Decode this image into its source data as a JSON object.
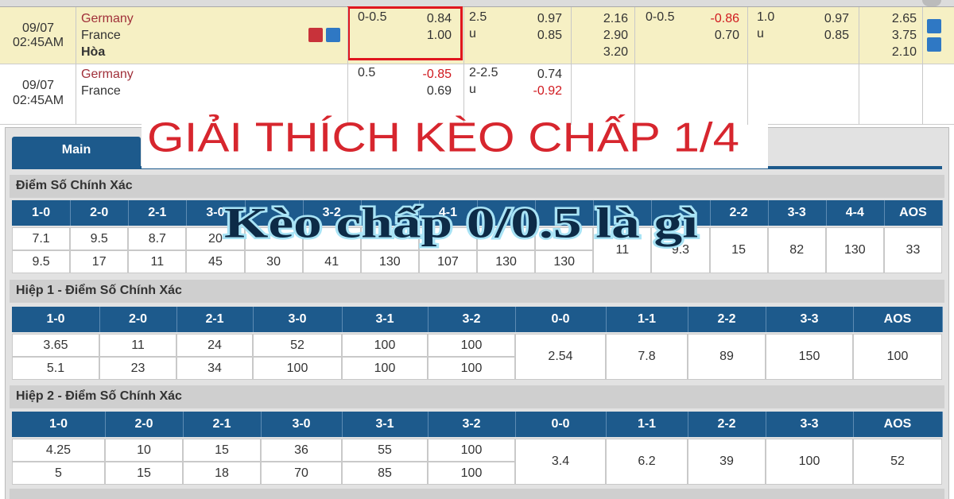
{
  "matches": [
    {
      "date": "09/07",
      "time": "02:45AM",
      "home": "Germany",
      "away": "France",
      "draw": "Hòa",
      "ft_handicap": {
        "line": "0-0.5",
        "home": "0.84",
        "away": "1.00"
      },
      "ft_ou": {
        "line": "2.5",
        "side": "u",
        "over": "0.97",
        "under": "0.85"
      },
      "ft_1x2": [
        "2.16",
        "2.90",
        "3.20"
      ],
      "h1_handicap": {
        "line": "0-0.5",
        "home": "-0.86",
        "away": "0.70"
      },
      "h1_ou": {
        "line": "1.0",
        "side": "u",
        "over": "0.97",
        "under": "0.85"
      },
      "h1_1x2": [
        "2.65",
        "3.75",
        "2.10"
      ]
    },
    {
      "date": "09/07",
      "time": "02:45AM",
      "home": "Germany",
      "away": "France",
      "ft_handicap": {
        "line": "0.5",
        "home": "-0.85",
        "away": "0.69"
      },
      "ft_ou": {
        "line": "2-2.5",
        "side": "u",
        "over": "0.74",
        "under": "-0.92"
      }
    }
  ],
  "tab": "Main",
  "banner": "GIẢI THÍCH KÈO CHẤP 1/4",
  "overlay": "Kèo chấp 0/0.5 là gì",
  "sections": [
    {
      "title": "Điểm Số Chính Xác",
      "columns": [
        "1-0",
        "2-0",
        "2-1",
        "3-0",
        null,
        "3-2",
        null,
        "4-1",
        null,
        null,
        null,
        null,
        "2-2",
        "3-3",
        "4-4",
        "AOS"
      ],
      "rows": [
        [
          "7.1",
          "9.5",
          "8.7",
          "20",
          null,
          null,
          null,
          null,
          null,
          null
        ],
        [
          "9.5",
          "17",
          "11",
          "45",
          "30",
          "41",
          "130",
          "107",
          "130",
          "130"
        ]
      ],
      "merged": [
        "11",
        "9.3",
        "15",
        "82",
        "130",
        "33"
      ]
    },
    {
      "title": "Hiệp 1 - Điểm Số Chính Xác",
      "columns": [
        "1-0",
        "2-0",
        "2-1",
        "3-0",
        "3-1",
        "3-2",
        "0-0",
        "1-1",
        "2-2",
        "3-3",
        "AOS"
      ],
      "rows": [
        [
          "3.65",
          "11",
          "24",
          "52",
          "100",
          "100"
        ],
        [
          "5.1",
          "23",
          "34",
          "100",
          "100",
          "100"
        ]
      ],
      "merged": [
        "2.54",
        "7.8",
        "89",
        "150",
        "100"
      ]
    },
    {
      "title": "Hiệp 2 - Điểm Số Chính Xác",
      "columns": [
        "1-0",
        "2-0",
        "2-1",
        "3-0",
        "3-1",
        "3-2",
        "0-0",
        "1-1",
        "2-2",
        "3-3",
        "AOS"
      ],
      "rows": [
        [
          "4.25",
          "10",
          "15",
          "36",
          "55",
          "100"
        ],
        [
          "5",
          "15",
          "18",
          "70",
          "85",
          "100"
        ]
      ],
      "merged": [
        "3.4",
        "6.2",
        "39",
        "100",
        "52"
      ]
    }
  ]
}
